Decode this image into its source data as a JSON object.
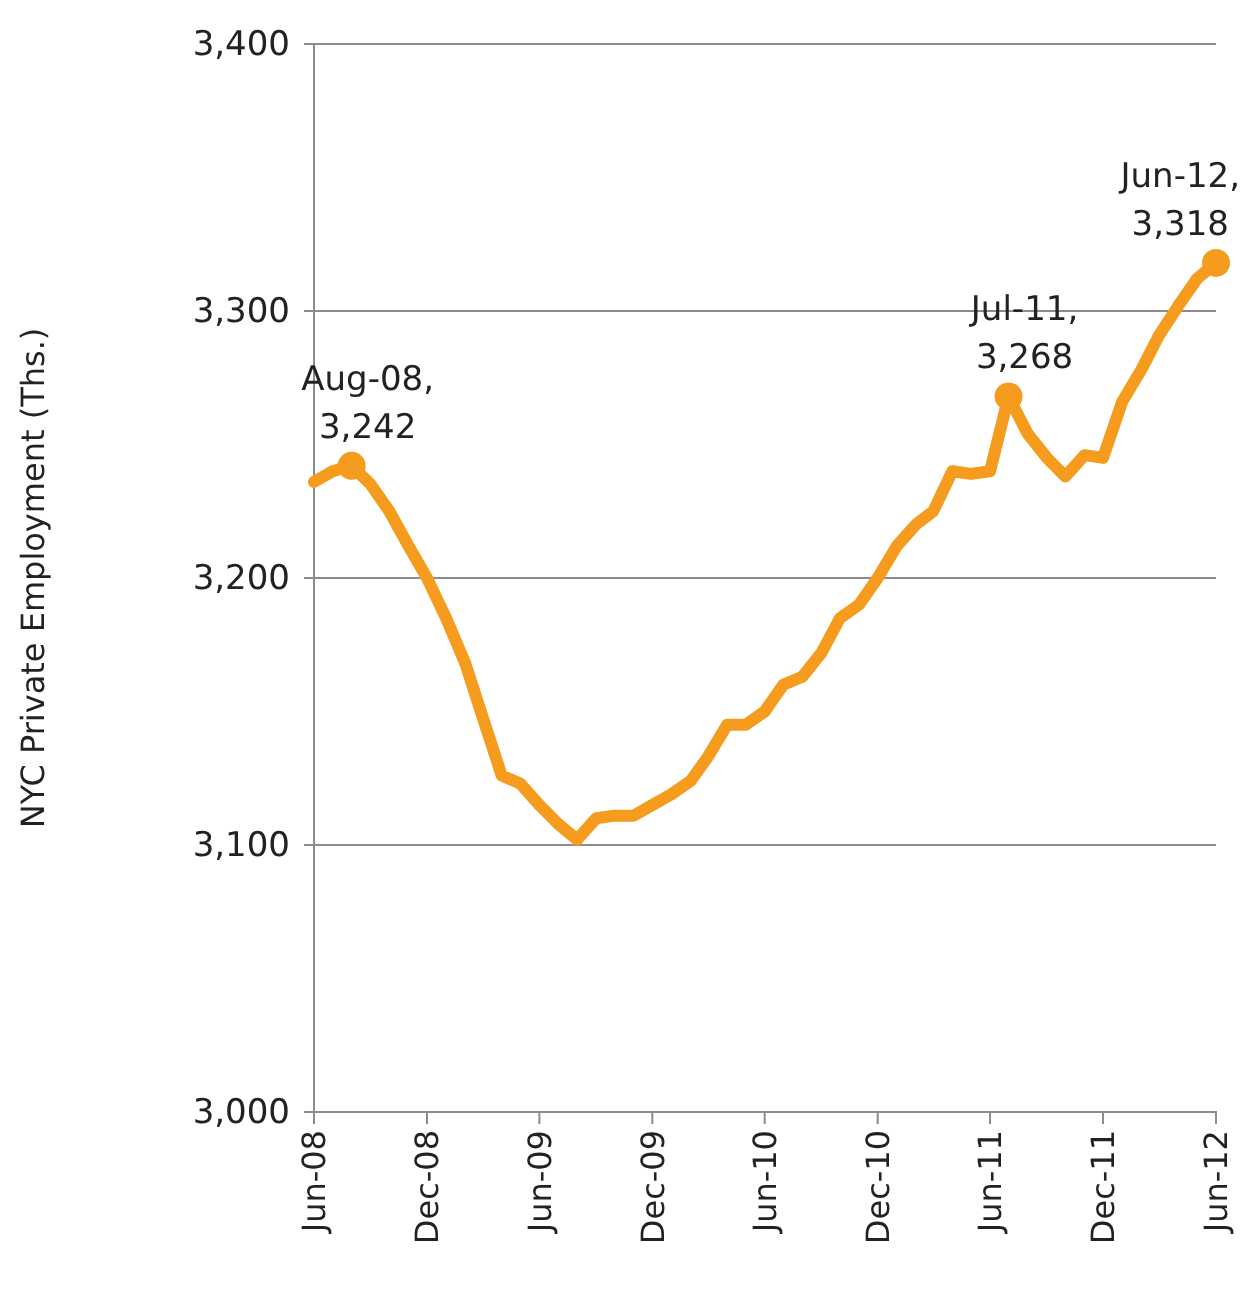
{
  "chart_data": {
    "type": "line",
    "ylabel": "NYC Private Employment (Ths.)",
    "x": [
      "2008-06",
      "2008-07",
      "2008-08",
      "2008-09",
      "2008-10",
      "2008-11",
      "2008-12",
      "2009-01",
      "2009-02",
      "2009-03",
      "2009-04",
      "2009-05",
      "2009-06",
      "2009-07",
      "2009-08",
      "2009-09",
      "2009-10",
      "2009-11",
      "2009-12",
      "2010-01",
      "2010-02",
      "2010-03",
      "2010-04",
      "2010-05",
      "2010-06",
      "2010-07",
      "2010-08",
      "2010-09",
      "2010-10",
      "2010-11",
      "2010-12",
      "2011-01",
      "2011-02",
      "2011-03",
      "2011-04",
      "2011-05",
      "2011-06",
      "2011-07",
      "2011-08",
      "2011-09",
      "2011-10",
      "2011-11",
      "2011-12",
      "2012-01",
      "2012-02",
      "2012-03",
      "2012-04",
      "2012-05",
      "2012-06"
    ],
    "series": [
      {
        "color": "#f59b1e",
        "values": [
          3236,
          3240,
          3242,
          3235,
          3225,
          3212,
          3200,
          3185,
          3168,
          3148,
          3126,
          3123,
          3115,
          3108,
          3102,
          3110,
          3111,
          3111,
          3115,
          3119,
          3124,
          3133,
          3145,
          3145,
          3150,
          3160,
          3163,
          3172,
          3185,
          3190,
          3200,
          3212,
          3220,
          3225,
          3240,
          3239,
          3240,
          3268,
          3254,
          3245,
          3238,
          3246,
          3245,
          3266,
          3278,
          3291,
          3302,
          3312,
          3318
        ]
      }
    ],
    "xlim": [
      "2008-06",
      "2012-06"
    ],
    "xticks": [
      {
        "value": "2008-06",
        "label": "Jun-08"
      },
      {
        "value": "2008-12",
        "label": "Dec-08"
      },
      {
        "value": "2009-06",
        "label": "Jun-09"
      },
      {
        "value": "2009-12",
        "label": "Dec-09"
      },
      {
        "value": "2010-06",
        "label": "Jun-10"
      },
      {
        "value": "2010-12",
        "label": "Dec-10"
      },
      {
        "value": "2011-06",
        "label": "Jun-11"
      },
      {
        "value": "2011-12",
        "label": "Dec-11"
      },
      {
        "value": "2012-06",
        "label": "Jun-12"
      }
    ],
    "ylim": [
      3000,
      3400
    ],
    "yticks": [
      {
        "value": 3000,
        "label": "3,000"
      },
      {
        "value": 3100,
        "label": "3,100"
      },
      {
        "value": 3200,
        "label": "3,200"
      },
      {
        "value": 3300,
        "label": "3,300"
      },
      {
        "value": 3400,
        "label": "3,400"
      }
    ],
    "grid": "y",
    "annotations": [
      {
        "text": "Aug-08, 3,242",
        "x": "2008-08",
        "y": 3242
      },
      {
        "text": "Jul-11, 3,268",
        "x": "2011-07",
        "y": 3268
      },
      {
        "text": "Jun-12, 3,318",
        "x": "2012-06",
        "y": 3318
      }
    ]
  }
}
